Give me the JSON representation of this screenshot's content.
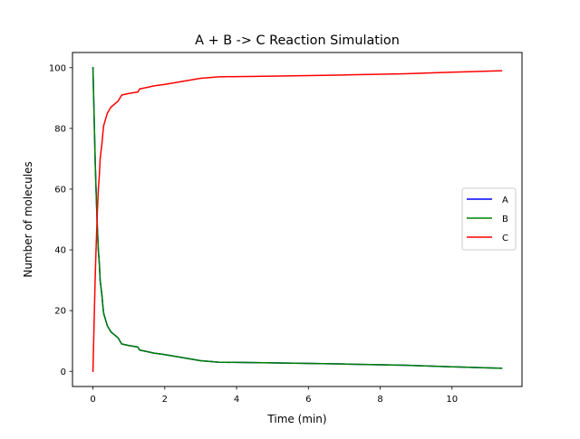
{
  "chart_data": {
    "type": "line",
    "title": "A + B -> C Reaction Simulation",
    "xlabel": "Time (min)",
    "ylabel": "Number of molecules",
    "xlim": [
      -0.57,
      11.95
    ],
    "ylim": [
      -5,
      105
    ],
    "xticks": [
      0,
      2,
      4,
      6,
      8,
      10
    ],
    "yticks": [
      0,
      20,
      40,
      60,
      80,
      100
    ],
    "grid": false,
    "legend_position": "center-right",
    "series": [
      {
        "name": "A",
        "color": "#0000ff",
        "x": [
          0,
          0.02,
          0.04,
          0.06,
          0.08,
          0.1,
          0.12,
          0.15,
          0.18,
          0.2,
          0.22,
          0.25,
          0.28,
          0.3,
          0.35,
          0.4,
          0.45,
          0.5,
          0.6,
          0.7,
          0.75,
          0.8,
          1.0,
          1.25,
          1.3,
          1.5,
          1.7,
          2.0,
          2.5,
          3.0,
          3.5,
          5.0,
          7.0,
          8.7,
          10.0,
          11.38
        ],
        "y": [
          100,
          90,
          80,
          70,
          62,
          55,
          48,
          40,
          35,
          30,
          28,
          25,
          21,
          19,
          17,
          15,
          14,
          13,
          12,
          11,
          10,
          9,
          8.5,
          8,
          7,
          6.5,
          6,
          5.5,
          4.5,
          3.5,
          3,
          2.8,
          2.4,
          2,
          1.5,
          1
        ]
      },
      {
        "name": "B",
        "color": "#008000",
        "x": [
          0,
          0.02,
          0.04,
          0.06,
          0.08,
          0.1,
          0.12,
          0.15,
          0.18,
          0.2,
          0.22,
          0.25,
          0.28,
          0.3,
          0.35,
          0.4,
          0.45,
          0.5,
          0.6,
          0.7,
          0.75,
          0.8,
          1.0,
          1.25,
          1.3,
          1.5,
          1.7,
          2.0,
          2.5,
          3.0,
          3.5,
          5.0,
          7.0,
          8.7,
          10.0,
          11.38
        ],
        "y": [
          100,
          90,
          80,
          70,
          62,
          55,
          48,
          40,
          35,
          30,
          28,
          25,
          21,
          19,
          17,
          15,
          14,
          13,
          12,
          11,
          10,
          9,
          8.5,
          8,
          7,
          6.5,
          6,
          5.5,
          4.5,
          3.5,
          3,
          2.8,
          2.4,
          2,
          1.5,
          1
        ]
      },
      {
        "name": "C",
        "color": "#ff0000",
        "x": [
          0,
          0.02,
          0.04,
          0.06,
          0.08,
          0.1,
          0.12,
          0.15,
          0.18,
          0.2,
          0.22,
          0.25,
          0.28,
          0.3,
          0.35,
          0.4,
          0.45,
          0.5,
          0.6,
          0.7,
          0.75,
          0.8,
          1.0,
          1.25,
          1.3,
          1.5,
          1.7,
          2.0,
          2.5,
          3.0,
          3.5,
          5.0,
          7.0,
          8.7,
          10.0,
          11.38
        ],
        "y": [
          0,
          10,
          20,
          30,
          38,
          45,
          52,
          60,
          65,
          70,
          72,
          75,
          79,
          81,
          83,
          85,
          86,
          87,
          88,
          89,
          90,
          91,
          91.5,
          92,
          93,
          93.5,
          94,
          94.5,
          95.5,
          96.5,
          97,
          97.2,
          97.6,
          98,
          98.5,
          99
        ]
      }
    ]
  }
}
